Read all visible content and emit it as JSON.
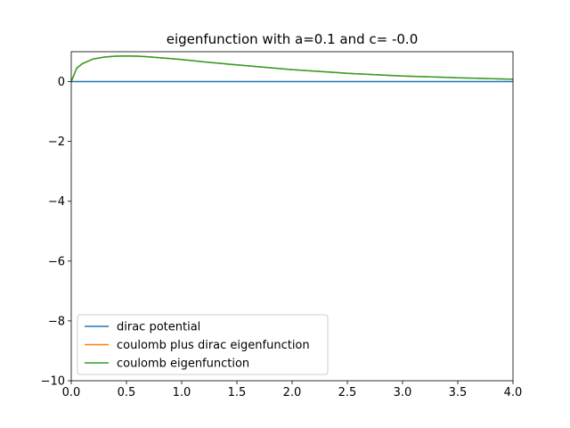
{
  "chart_data": {
    "type": "line",
    "title": "eigenfunction with a=0.1 and c= -0.0",
    "xlabel": "",
    "ylabel": "",
    "xlim": [
      0.0,
      4.0
    ],
    "ylim": [
      -10,
      1
    ],
    "xticks": [
      0.0,
      0.5,
      1.0,
      1.5,
      2.0,
      2.5,
      3.0,
      3.5,
      4.0
    ],
    "xtick_labels": [
      "0.0",
      "0.5",
      "1.0",
      "1.5",
      "2.0",
      "2.5",
      "3.0",
      "3.5",
      "4.0"
    ],
    "yticks": [
      0,
      -2,
      -4,
      -6,
      -8,
      -10
    ],
    "ytick_labels": [
      "0",
      "−2",
      "−4",
      "−6",
      "−8",
      "−10"
    ],
    "grid": false,
    "legend_position": "lower-left",
    "series": [
      {
        "name": "dirac potential",
        "color": "#1f77b4",
        "x": [
          0.0,
          0.5,
          1.0,
          1.5,
          2.0,
          2.5,
          3.0,
          3.5,
          4.0
        ],
        "y": [
          0,
          0,
          0,
          0,
          0,
          0,
          0,
          0,
          0
        ]
      },
      {
        "name": "coulomb plus dirac eigenfunction",
        "color": "#ff7f0e",
        "x": [
          0.0,
          0.05,
          0.1,
          0.2,
          0.3,
          0.4,
          0.5,
          0.6,
          0.7,
          0.8,
          1.0,
          1.2,
          1.5,
          2.0,
          2.5,
          3.0,
          3.5,
          4.0
        ],
        "y": [
          0.0,
          0.45,
          0.6,
          0.76,
          0.82,
          0.85,
          0.86,
          0.85,
          0.83,
          0.8,
          0.74,
          0.66,
          0.56,
          0.4,
          0.28,
          0.19,
          0.13,
          0.08
        ]
      },
      {
        "name": "coulomb eigenfunction",
        "color": "#2ca02c",
        "x": [
          0.0,
          0.05,
          0.1,
          0.2,
          0.3,
          0.4,
          0.5,
          0.6,
          0.7,
          0.8,
          1.0,
          1.2,
          1.5,
          2.0,
          2.5,
          3.0,
          3.5,
          4.0
        ],
        "y": [
          0.0,
          0.45,
          0.6,
          0.76,
          0.82,
          0.85,
          0.86,
          0.85,
          0.83,
          0.8,
          0.74,
          0.66,
          0.56,
          0.4,
          0.28,
          0.19,
          0.13,
          0.08
        ]
      }
    ]
  }
}
